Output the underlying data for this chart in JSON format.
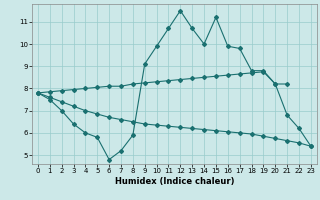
{
  "line1_x": [
    0,
    1,
    2,
    3,
    4,
    5,
    6,
    7,
    8,
    9,
    10,
    11,
    12,
    13,
    14,
    15,
    16,
    17,
    18,
    19,
    20,
    21,
    22,
    23
  ],
  "line1_y": [
    7.8,
    7.5,
    7.0,
    6.4,
    6.0,
    5.8,
    4.8,
    5.2,
    5.9,
    9.1,
    9.9,
    10.7,
    11.5,
    10.7,
    10.0,
    11.2,
    9.9,
    9.8,
    8.8,
    8.8,
    8.2,
    6.8,
    6.2,
    5.4
  ],
  "line2_x": [
    0,
    1,
    2,
    3,
    4,
    5,
    6,
    7,
    8,
    9,
    10,
    11,
    12,
    13,
    14,
    15,
    16,
    17,
    18,
    19,
    20,
    21
  ],
  "line2_y": [
    7.8,
    7.85,
    7.9,
    7.95,
    8.0,
    8.05,
    8.1,
    8.1,
    8.2,
    8.25,
    8.3,
    8.35,
    8.4,
    8.45,
    8.5,
    8.55,
    8.6,
    8.65,
    8.7,
    8.75,
    8.2,
    8.2
  ],
  "line3_x": [
    0,
    1,
    2,
    3,
    4,
    5,
    6,
    7,
    8,
    9,
    10,
    11,
    12,
    13,
    14,
    15,
    16,
    17,
    18,
    19,
    20,
    21,
    22,
    23
  ],
  "line3_y": [
    7.8,
    7.6,
    7.4,
    7.2,
    7.0,
    6.85,
    6.7,
    6.6,
    6.5,
    6.4,
    6.35,
    6.3,
    6.25,
    6.2,
    6.15,
    6.1,
    6.05,
    6.0,
    5.95,
    5.85,
    5.75,
    5.65,
    5.55,
    5.4
  ],
  "bg_color": "#cce8e8",
  "line_color": "#1a7070",
  "grid_color": "#99cccc",
  "xlabel": "Humidex (Indice chaleur)",
  "xlim": [
    -0.5,
    23.5
  ],
  "ylim": [
    4.6,
    11.8
  ],
  "yticks": [
    5,
    6,
    7,
    8,
    9,
    10,
    11
  ],
  "xticks": [
    0,
    1,
    2,
    3,
    4,
    5,
    6,
    7,
    8,
    9,
    10,
    11,
    12,
    13,
    14,
    15,
    16,
    17,
    18,
    19,
    20,
    21,
    22,
    23
  ]
}
